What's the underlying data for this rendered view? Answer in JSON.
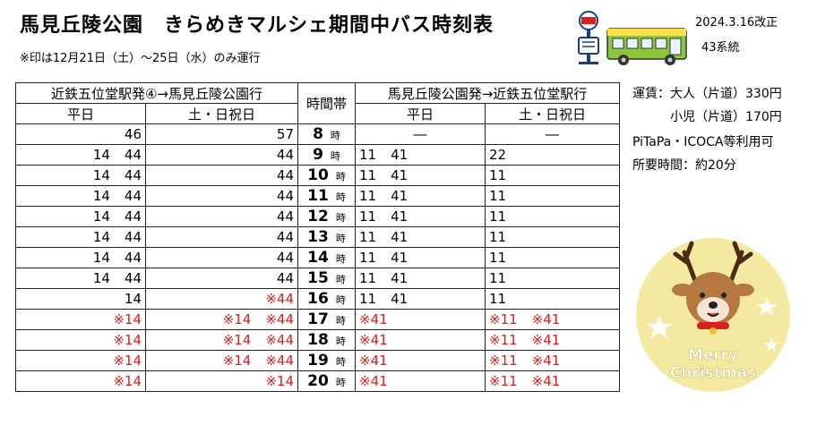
{
  "header": {
    "title": "馬見丘陵公園　きらめきマルシェ期間中バス時刻表",
    "note": "※印は12月21日（土）～25日（水）のみ運行",
    "revised": "2024.3.16改正",
    "route": "43系統"
  },
  "table": {
    "dir1": "近鉄五位堂駅発④→馬見丘陵公園行",
    "dir2": "馬見丘陵公園発→近鉄五位堂駅行",
    "time_col": "時間帯",
    "weekday": "平日",
    "holiday": "土・日祝日",
    "hour_suffix": "時",
    "rows": [
      {
        "hour": "8",
        "d1w": "46",
        "d1h": "57",
        "d2w": "―",
        "d2h": "―"
      },
      {
        "hour": "9",
        "d1w": "14 44",
        "d1h": "44",
        "d2w": "11 41",
        "d2h": "22"
      },
      {
        "hour": "10",
        "d1w": "14 44",
        "d1h": "44",
        "d2w": "11 41",
        "d2h": "11"
      },
      {
        "hour": "11",
        "d1w": "14 44",
        "d1h": "44",
        "d2w": "11 41",
        "d2h": "11"
      },
      {
        "hour": "12",
        "d1w": "14 44",
        "d1h": "44",
        "d2w": "11 41",
        "d2h": "11"
      },
      {
        "hour": "13",
        "d1w": "14 44",
        "d1h": "44",
        "d2w": "11 41",
        "d2h": "11"
      },
      {
        "hour": "14",
        "d1w": "14 44",
        "d1h": "44",
        "d2w": "11 41",
        "d2h": "11"
      },
      {
        "hour": "15",
        "d1w": "14 44",
        "d1h": "44",
        "d2w": "11 41",
        "d2h": "11"
      },
      {
        "hour": "16",
        "d1w": "14",
        "d1h": "※44",
        "d2w": "11 41",
        "d2h": "11"
      },
      {
        "hour": "17",
        "d1w": "※14",
        "d1h": "※14 ※44",
        "d2w": "※41",
        "d2h": "※11 ※41"
      },
      {
        "hour": "18",
        "d1w": "※14",
        "d1h": "※14 ※44",
        "d2w": "※41",
        "d2h": "※11 ※41"
      },
      {
        "hour": "19",
        "d1w": "※14",
        "d1h": "※14 ※44",
        "d2w": "※41",
        "d2h": "※11 ※41"
      },
      {
        "hour": "20",
        "d1w": "※14",
        "d1h": "※14",
        "d2w": "※41",
        "d2h": "※11 ※41"
      }
    ]
  },
  "info": {
    "fare_adult": "運賃：大人（片道）330円",
    "fare_child": "小児（片道）170円",
    "ic": "PiTaPa・ICOCA等利用可",
    "duration": "所要時間：約20分"
  },
  "badge": {
    "line1": "Merry",
    "line2": "Christmas"
  },
  "colors": {
    "red": "#d81e1e",
    "badge_bg": "#f3e9a0",
    "bus_green": "#8cc63f"
  }
}
